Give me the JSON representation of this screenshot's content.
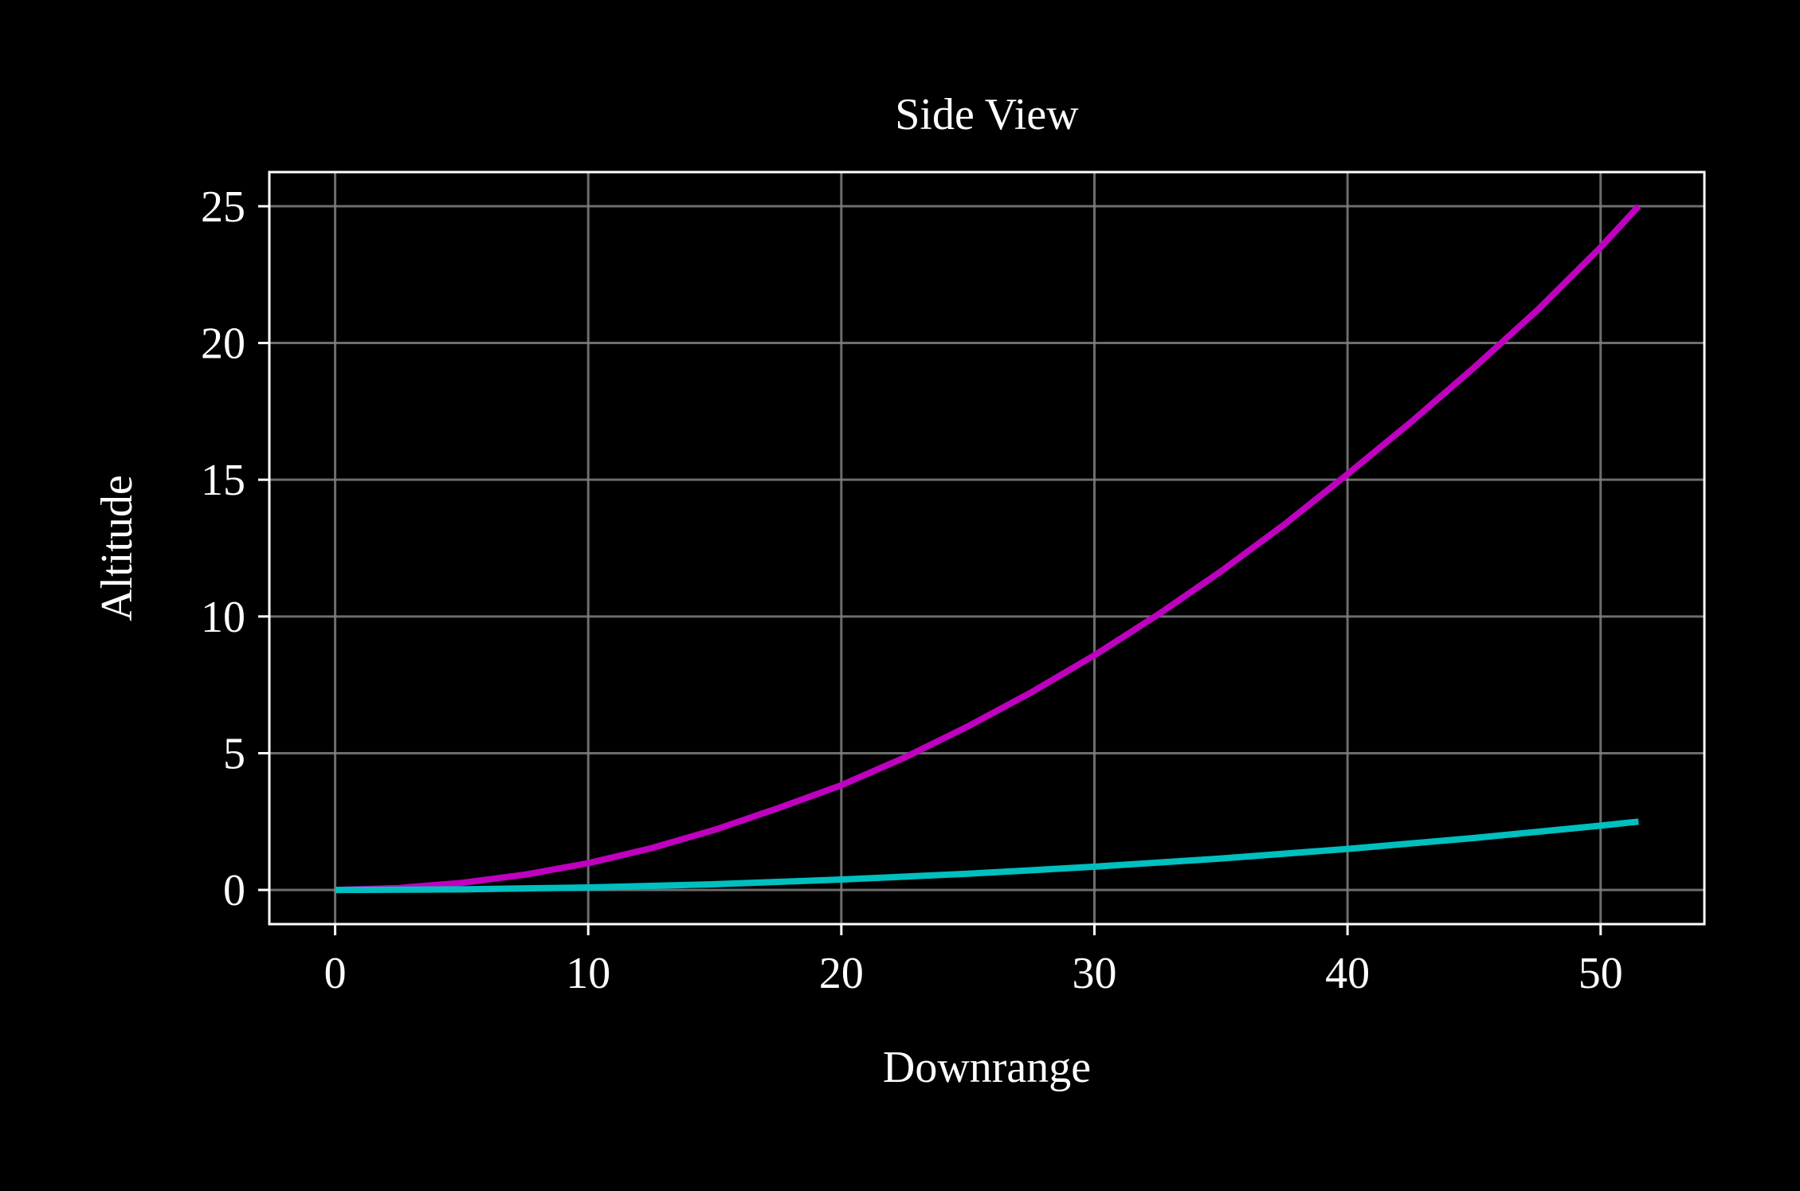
{
  "chart_data": {
    "type": "line",
    "title": "Side View",
    "xlabel": "Downrange",
    "ylabel": "Altitude",
    "xlim": [
      -2.6,
      54.1
    ],
    "ylim": [
      -1.25,
      26.25
    ],
    "xticks": [
      0,
      10,
      20,
      30,
      40,
      50
    ],
    "yticks": [
      0,
      5,
      10,
      15,
      20,
      25
    ],
    "grid": true,
    "background": "#000000",
    "foreground": "#ffffff",
    "grid_color": "#808080",
    "series": [
      {
        "color": "#bf00bf",
        "x": [
          0,
          2.5,
          5,
          7.5,
          10,
          12.5,
          15,
          17.5,
          20,
          22.5,
          25,
          27.5,
          30,
          32.5,
          35,
          37.5,
          40,
          42.5,
          45,
          47.5,
          50,
          51.5
        ],
        "y": [
          0,
          0.07,
          0.26,
          0.56,
          0.98,
          1.53,
          2.2,
          2.99,
          3.83,
          4.84,
          5.98,
          7.22,
          8.58,
          10.06,
          11.65,
          13.36,
          15.2,
          17.1,
          19.1,
          21.2,
          23.5,
          25.0
        ]
      },
      {
        "color": "#00bfbf",
        "x": [
          0,
          5,
          10,
          15,
          20,
          25,
          30,
          35,
          40,
          45,
          50,
          51.5
        ],
        "y": [
          0,
          0.02,
          0.09,
          0.21,
          0.38,
          0.59,
          0.85,
          1.15,
          1.5,
          1.9,
          2.35,
          2.5
        ]
      }
    ]
  }
}
